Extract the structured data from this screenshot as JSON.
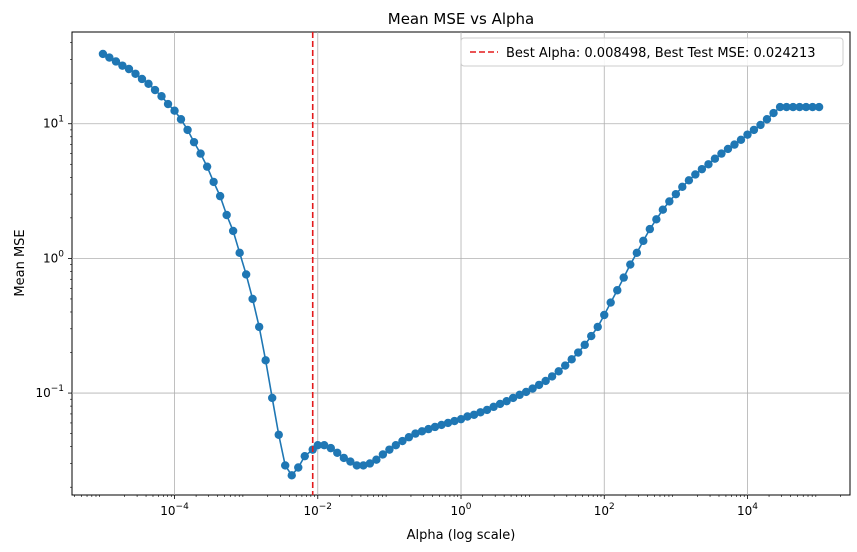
{
  "chart_data": {
    "type": "line",
    "title": "Mean MSE vs Alpha",
    "xlabel": "Alpha (log scale)",
    "ylabel": "Mean MSE",
    "xscale": "log",
    "yscale": "log",
    "xlim": [
      3.7e-06,
      270000
    ],
    "ylim": [
      0.0175,
      48
    ],
    "grid": true,
    "legend_position": "top-right",
    "x_ticks": [
      {
        "value": 0.0001,
        "base": "10",
        "exp": "−4"
      },
      {
        "value": 0.01,
        "base": "10",
        "exp": "−2"
      },
      {
        "value": 1,
        "base": "10",
        "exp": "0"
      },
      {
        "value": 100,
        "base": "10",
        "exp": "2"
      },
      {
        "value": 10000,
        "base": "10",
        "exp": "4"
      }
    ],
    "y_ticks": [
      {
        "value": 0.1,
        "base": "10",
        "exp": "−1"
      },
      {
        "value": 1,
        "base": "10",
        "exp": "0"
      },
      {
        "value": 10,
        "base": "10",
        "exp": "1"
      }
    ],
    "series": [
      {
        "color": "#1f77b4",
        "marker": "circle",
        "x": [
          1e-05,
          1.23e-05,
          1.52e-05,
          1.87e-05,
          2.31e-05,
          2.85e-05,
          3.51e-05,
          4.33e-05,
          5.34e-05,
          6.58e-05,
          8.11e-05,
          0.0001,
          0.000123,
          0.000152,
          0.000187,
          0.000231,
          0.000285,
          0.000351,
          0.000433,
          0.000534,
          0.000658,
          0.000811,
          0.001,
          0.00123,
          0.00152,
          0.00187,
          0.00231,
          0.00285,
          0.00351,
          0.00433,
          0.00534,
          0.00658,
          0.0085,
          0.01,
          0.0123,
          0.0152,
          0.0187,
          0.0231,
          0.0285,
          0.0351,
          0.0433,
          0.0534,
          0.0658,
          0.0811,
          0.1,
          0.123,
          0.152,
          0.187,
          0.231,
          0.285,
          0.351,
          0.433,
          0.534,
          0.658,
          0.811,
          1.0,
          1.23,
          1.52,
          1.87,
          2.31,
          2.85,
          3.51,
          4.33,
          5.34,
          6.58,
          8.11,
          10.0,
          12.3,
          15.2,
          18.7,
          23.1,
          28.5,
          35.1,
          43.3,
          53.4,
          65.8,
          81.1,
          100.0,
          123.0,
          152.0,
          187.0,
          231.0,
          285.0,
          351.0,
          433.0,
          534.0,
          658.0,
          811.0,
          1000.0,
          1230.0,
          1520.0,
          1870.0,
          2310.0,
          2850.0,
          3510.0,
          4330.0,
          5340.0,
          6580.0,
          8110.0,
          10000.0,
          12300.0,
          15200.0,
          18700.0,
          23100.0,
          28500.0,
          35100.0,
          43300.0,
          53400.0,
          65800.0,
          81100.0,
          100000.0
        ],
        "y": [
          33.0,
          31.0,
          29.0,
          27.0,
          25.5,
          23.5,
          21.5,
          19.8,
          17.8,
          16.0,
          14.0,
          12.5,
          10.8,
          9.0,
          7.3,
          6.0,
          4.8,
          3.7,
          2.9,
          2.1,
          1.6,
          1.1,
          0.76,
          0.5,
          0.31,
          0.175,
          0.092,
          0.049,
          0.029,
          0.0245,
          0.028,
          0.034,
          0.038,
          0.041,
          0.041,
          0.039,
          0.036,
          0.033,
          0.031,
          0.029,
          0.029,
          0.03,
          0.032,
          0.035,
          0.038,
          0.041,
          0.044,
          0.047,
          0.05,
          0.052,
          0.054,
          0.056,
          0.058,
          0.06,
          0.062,
          0.064,
          0.067,
          0.069,
          0.072,
          0.075,
          0.079,
          0.083,
          0.087,
          0.092,
          0.097,
          0.102,
          0.108,
          0.115,
          0.123,
          0.133,
          0.145,
          0.16,
          0.178,
          0.2,
          0.228,
          0.265,
          0.31,
          0.38,
          0.47,
          0.58,
          0.72,
          0.9,
          1.1,
          1.35,
          1.65,
          1.95,
          2.3,
          2.65,
          3.0,
          3.4,
          3.8,
          4.2,
          4.6,
          5.0,
          5.5,
          6.0,
          6.5,
          7.0,
          7.6,
          8.3,
          9.0,
          9.8,
          10.8,
          12.0,
          13.3,
          13.3,
          13.3,
          13.3,
          13.3,
          13.3,
          13.3
        ]
      }
    ],
    "reference_line": {
      "orientation": "vertical",
      "x": 0.008498,
      "color": "#e31a1c",
      "style": "dashed",
      "label": "Best Alpha: 0.008498, Best Test MSE: 0.024213"
    }
  }
}
